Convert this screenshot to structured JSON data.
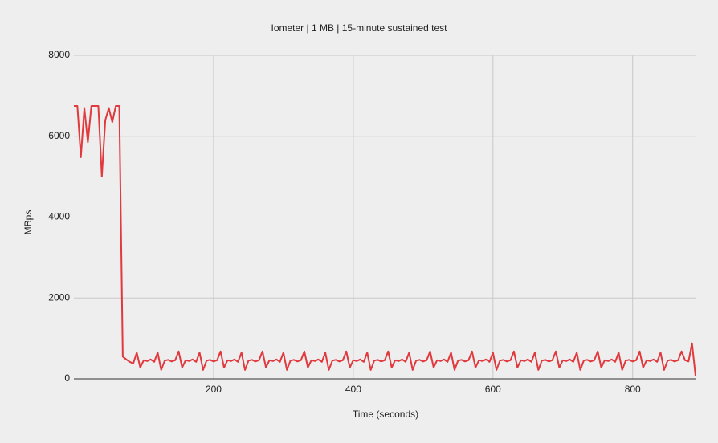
{
  "chart_data": {
    "type": "line",
    "title": "Iometer | 1 MB | 15-minute sustained test",
    "x_label": "Time (seconds)",
    "y_label": "MBps",
    "xlim": [
      0,
      890
    ],
    "ylim": [
      0,
      8000
    ],
    "xticks": [
      200,
      400,
      600,
      800
    ],
    "yticks": [
      0,
      2000,
      4000,
      6000,
      8000
    ],
    "grid": true,
    "x": [
      0,
      5,
      10,
      15,
      20,
      25,
      30,
      35,
      40,
      45,
      50,
      55,
      60,
      65,
      70,
      75,
      80,
      85,
      90,
      95,
      100,
      105,
      110,
      115,
      120,
      125,
      130,
      135,
      140,
      145,
      150,
      155,
      160,
      165,
      170,
      175,
      180,
      185,
      190,
      195,
      200,
      205,
      210,
      215,
      220,
      225,
      230,
      235,
      240,
      245,
      250,
      255,
      260,
      265,
      270,
      275,
      280,
      285,
      290,
      295,
      300,
      305,
      310,
      315,
      320,
      325,
      330,
      335,
      340,
      345,
      350,
      355,
      360,
      365,
      370,
      375,
      380,
      385,
      390,
      395,
      400,
      405,
      410,
      415,
      420,
      425,
      430,
      435,
      440,
      445,
      450,
      455,
      460,
      465,
      470,
      475,
      480,
      485,
      490,
      495,
      500,
      505,
      510,
      515,
      520,
      525,
      530,
      535,
      540,
      545,
      550,
      555,
      560,
      565,
      570,
      575,
      580,
      585,
      590,
      595,
      600,
      605,
      610,
      615,
      620,
      625,
      630,
      635,
      640,
      645,
      650,
      655,
      660,
      665,
      670,
      675,
      680,
      685,
      690,
      695,
      700,
      705,
      710,
      715,
      720,
      725,
      730,
      735,
      740,
      745,
      750,
      755,
      760,
      765,
      770,
      775,
      780,
      785,
      790,
      795,
      800,
      805,
      810,
      815,
      820,
      825,
      830,
      835,
      840,
      845,
      850,
      855,
      860,
      865,
      870,
      875,
      880,
      885,
      890
    ],
    "series": [
      {
        "name": "MBps",
        "color": "#e0393e",
        "values": [
          6750,
          6750,
          5480,
          6700,
          5850,
          6750,
          6750,
          6750,
          5000,
          6400,
          6700,
          6350,
          6750,
          6750,
          550,
          480,
          420,
          380,
          650,
          280,
          460,
          440,
          480,
          420,
          650,
          220,
          450,
          470,
          430,
          460,
          680,
          280,
          460,
          440,
          480,
          420,
          650,
          220,
          450,
          470,
          430,
          460,
          680,
          280,
          460,
          440,
          480,
          420,
          650,
          220,
          450,
          470,
          430,
          460,
          680,
          280,
          460,
          440,
          480,
          420,
          650,
          220,
          450,
          470,
          430,
          460,
          680,
          280,
          460,
          440,
          480,
          420,
          650,
          220,
          450,
          470,
          430,
          460,
          680,
          280,
          460,
          440,
          480,
          420,
          650,
          220,
          450,
          470,
          430,
          460,
          680,
          280,
          460,
          440,
          480,
          420,
          650,
          220,
          450,
          470,
          430,
          460,
          680,
          280,
          460,
          440,
          480,
          420,
          650,
          220,
          450,
          470,
          430,
          460,
          680,
          280,
          460,
          440,
          480,
          420,
          650,
          220,
          450,
          470,
          430,
          460,
          680,
          280,
          460,
          440,
          480,
          420,
          650,
          220,
          450,
          470,
          430,
          460,
          680,
          280,
          460,
          440,
          480,
          420,
          650,
          220,
          450,
          470,
          430,
          460,
          680,
          280,
          460,
          440,
          480,
          420,
          650,
          220,
          450,
          470,
          430,
          460,
          680,
          280,
          460,
          440,
          480,
          420,
          650,
          220,
          450,
          470,
          430,
          460,
          680,
          460,
          430,
          880,
          80
        ]
      }
    ]
  }
}
